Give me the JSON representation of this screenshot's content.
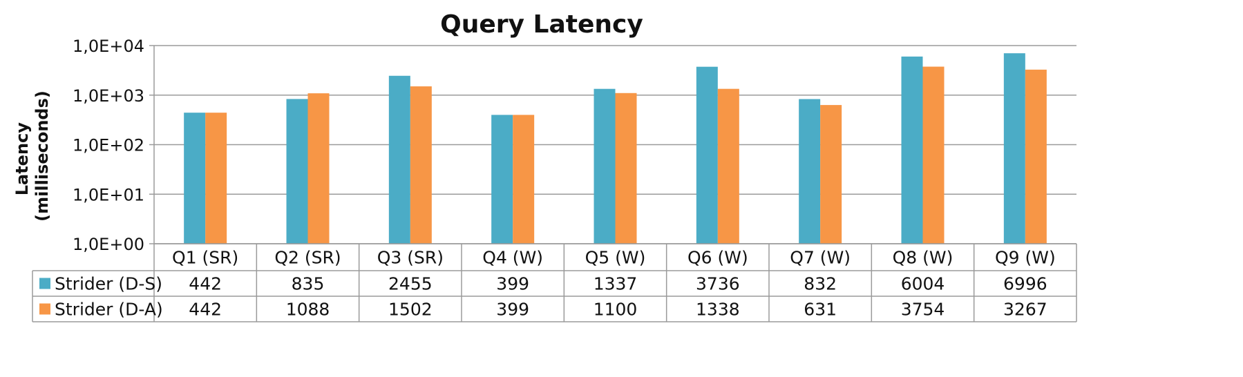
{
  "chart_data": {
    "type": "bar",
    "title": "Query  Latency",
    "xlabel": "",
    "ylabel": [
      "Latency",
      "(milliseconds)"
    ],
    "y_scale": "log",
    "ylim": [
      1,
      10000
    ],
    "y_tick_values": [
      1,
      10,
      100,
      1000,
      10000
    ],
    "y_tick_labels": [
      "1,0E+00",
      "1,0E+01",
      "1,0E+02",
      "1,0E+03",
      "1,0E+04"
    ],
    "grid": true,
    "legend": "data-table",
    "categories": [
      "Q1 (SR)",
      "Q2 (SR)",
      "Q3 (SR)",
      "Q4 (W)",
      "Q5 (W)",
      "Q6 (W)",
      "Q7 (W)",
      "Q8 (W)",
      "Q9 (W)"
    ],
    "series": [
      {
        "name": "Strider (D-S)",
        "color": "#4BACC6",
        "values": [
          442,
          835,
          2455,
          399,
          1337,
          3736,
          832,
          6004,
          6996
        ]
      },
      {
        "name": "Strider (D-A)",
        "color": "#F79646",
        "values": [
          442,
          1088,
          1502,
          399,
          1100,
          1338,
          631,
          3754,
          3267
        ]
      }
    ]
  }
}
